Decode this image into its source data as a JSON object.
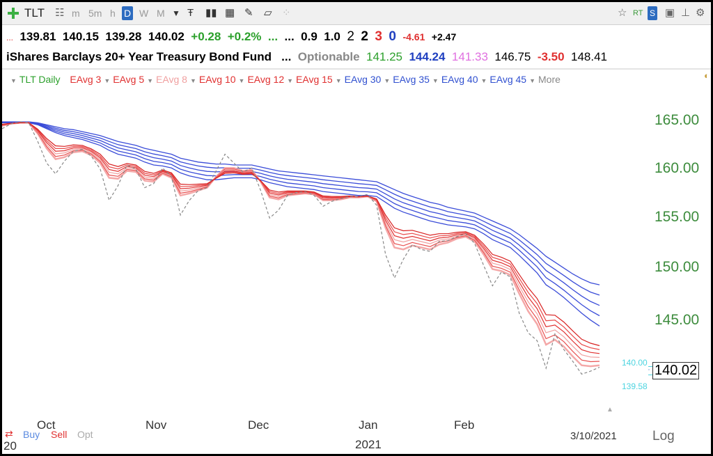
{
  "toolbar": {
    "symbol": "TLT",
    "timeframes": [
      "m",
      "5m",
      "h",
      "D",
      "W",
      "M"
    ],
    "selected": "D",
    "rt": "RT",
    "s": "S"
  },
  "quote": {
    "dots_left": "...",
    "open": "139.81",
    "high": "140.15",
    "low": "139.28",
    "close": "140.02",
    "change": "+0.28",
    "change_pct": "+0.2%",
    "dots_a": "...",
    "dots_b": "...",
    "v1": "0.9",
    "v2": "1.0",
    "n2": "2",
    "n2b": "2",
    "n3": "3",
    "n0": "0",
    "neg": "-4.61",
    "pos": "+2.47",
    "name": "iShares Barclays 20+ Year Treasury Bond Fund",
    "dots_c": "...",
    "optionable": "Optionable",
    "p1": "141.25",
    "p2": "144.24",
    "p3": "141.33",
    "p4": "146.75",
    "p5": "-3.50",
    "p6": "148.41"
  },
  "legend": {
    "daily": "TLT Daily",
    "items": [
      {
        "label": "EAvg 3",
        "color": "#e03030"
      },
      {
        "label": "EAvg 5",
        "color": "#e03030"
      },
      {
        "label": "EAvg 8",
        "color": "#f0a0a0"
      },
      {
        "label": "EAvg 10",
        "color": "#e03030"
      },
      {
        "label": "EAvg 12",
        "color": "#e03030"
      },
      {
        "label": "EAvg 15",
        "color": "#e03030"
      },
      {
        "label": "EAvg 30",
        "color": "#3050d0"
      },
      {
        "label": "EAvg 35",
        "color": "#3050d0"
      },
      {
        "label": "EAvg 40",
        "color": "#3050d0"
      },
      {
        "label": "EAvg 45",
        "color": "#3050d0"
      }
    ],
    "more": "More"
  },
  "chart_data": {
    "type": "line",
    "ylim": [
      139,
      167.5
    ],
    "y_ticks": [
      "165.00",
      "160.00",
      "155.00",
      "150.00",
      "145.00"
    ],
    "x_ticks": [
      "Oct",
      "Nov",
      "Dec",
      "Jan",
      "Feb"
    ],
    "x_year": "2021",
    "x_year_prefix": "20",
    "date_label": "3/10/2021",
    "price_label": "140.02",
    "hi_label": "140.00",
    "lo_label": "139.58",
    "log_label": "Log",
    "buy": "Buy",
    "sell": "Sell",
    "opt": "Opt",
    "price": [
      164.3,
      164.8,
      165.0,
      164.9,
      163.0,
      160.8,
      159.7,
      161.0,
      162.0,
      162.2,
      161.5,
      160.2,
      157.0,
      158.5,
      160.6,
      160.2,
      158.3,
      158.7,
      160.3,
      159.4,
      155.5,
      157.0,
      158.0,
      158.3,
      160.0,
      161.7,
      160.8,
      159.9,
      160.3,
      158.0,
      155.2,
      156.0,
      157.5,
      157.8,
      157.9,
      157.5,
      156.4,
      156.9,
      157.2,
      157.4,
      157.4,
      157.6,
      156.5,
      151.5,
      149.1,
      151.0,
      152.5,
      152.0,
      151.8,
      152.8,
      152.9,
      153.3,
      153.6,
      152.6,
      150.4,
      148.3,
      149.7,
      149.2,
      145.5,
      143.5,
      142.7,
      139.9,
      143.4,
      141.8,
      140.6,
      139.3,
      139.6,
      140.0
    ],
    "fast": [
      164.6,
      164.8,
      164.9,
      164.9,
      163.8,
      162.3,
      161.2,
      161.4,
      161.9,
      162.0,
      161.6,
      160.8,
      159.3,
      159.2,
      160.0,
      159.9,
      159.0,
      158.9,
      159.7,
      159.3,
      157.5,
      157.7,
      158.0,
      158.3,
      159.4,
      160.3,
      160.3,
      160.0,
      160.1,
      158.9,
      157.3,
      157.1,
      157.5,
      157.6,
      157.7,
      157.6,
      157.0,
      157.0,
      157.1,
      157.3,
      157.3,
      157.4,
      156.9,
      154.2,
      152.2,
      152.0,
      152.4,
      152.2,
      152.0,
      152.5,
      152.7,
      153.1,
      153.3,
      152.8,
      151.5,
      150.0,
      149.8,
      149.4,
      147.5,
      145.7,
      144.4,
      142.3,
      142.8,
      142.1,
      141.1,
      140.2,
      140.1,
      140.2
    ],
    "slow": [
      164.9,
      164.9,
      164.9,
      164.9,
      164.7,
      164.3,
      163.9,
      163.6,
      163.4,
      163.2,
      162.9,
      162.6,
      162.1,
      161.7,
      161.5,
      161.3,
      160.9,
      160.6,
      160.5,
      160.3,
      159.8,
      159.5,
      159.3,
      159.1,
      159.1,
      159.2,
      159.3,
      159.3,
      159.3,
      159.1,
      158.8,
      158.6,
      158.4,
      158.3,
      158.2,
      158.1,
      157.9,
      157.8,
      157.7,
      157.6,
      157.5,
      157.5,
      157.4,
      156.8,
      156.2,
      155.8,
      155.5,
      155.2,
      154.9,
      154.7,
      154.5,
      154.4,
      154.3,
      154.1,
      153.6,
      153.0,
      152.6,
      152.2,
      151.4,
      150.5,
      149.6,
      148.4,
      147.8,
      147.1,
      146.3,
      145.5,
      144.8,
      144.2
    ],
    "blue_top": [
      165.0,
      165.0,
      165.0,
      165.0,
      164.9,
      164.7,
      164.5,
      164.3,
      164.2,
      164.0,
      163.8,
      163.6,
      163.3,
      163.0,
      162.8,
      162.6,
      162.3,
      162.1,
      161.9,
      161.7,
      161.3,
      161.1,
      160.9,
      160.8,
      160.7,
      160.7,
      160.6,
      160.6,
      160.6,
      160.4,
      160.2,
      160.0,
      159.9,
      159.8,
      159.7,
      159.6,
      159.5,
      159.4,
      159.3,
      159.2,
      159.1,
      159.0,
      158.9,
      158.5,
      158.1,
      157.7,
      157.4,
      157.1,
      156.8,
      156.6,
      156.3,
      156.1,
      155.9,
      155.7,
      155.3,
      154.9,
      154.5,
      154.1,
      153.5,
      152.8,
      152.1,
      151.3,
      150.7,
      150.1,
      149.5,
      149.0,
      148.6,
      148.4
    ],
    "price_color": "#888888",
    "red_color": "#e03030",
    "blue_color": "#3a4cd8"
  }
}
